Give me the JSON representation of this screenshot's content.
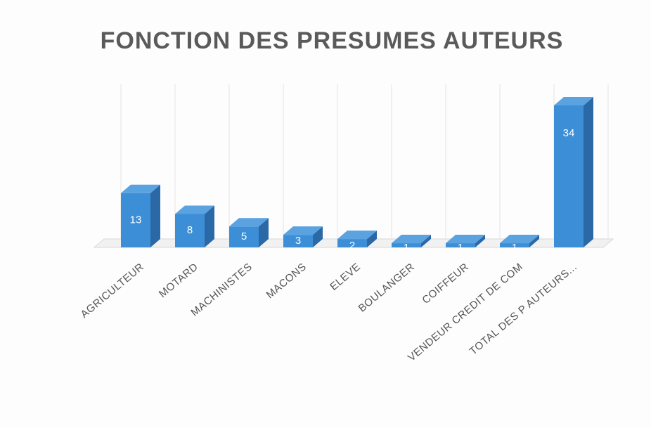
{
  "chart_data": {
    "type": "bar3d",
    "title": "FONCTION DES PRESUMES AUTEURS",
    "categories": [
      "AGRICULTEUR",
      "MOTARD",
      "MACHINISTES",
      "MACONS",
      "ELEVE",
      "BOULANGER",
      "COIFFEUR",
      "VENDEUR CREDIT DE COM",
      "TOTAL DES P AUTEURS..."
    ],
    "values": [
      13,
      8,
      5,
      3,
      2,
      1,
      1,
      1,
      34
    ],
    "color": "#3c8ed6"
  }
}
